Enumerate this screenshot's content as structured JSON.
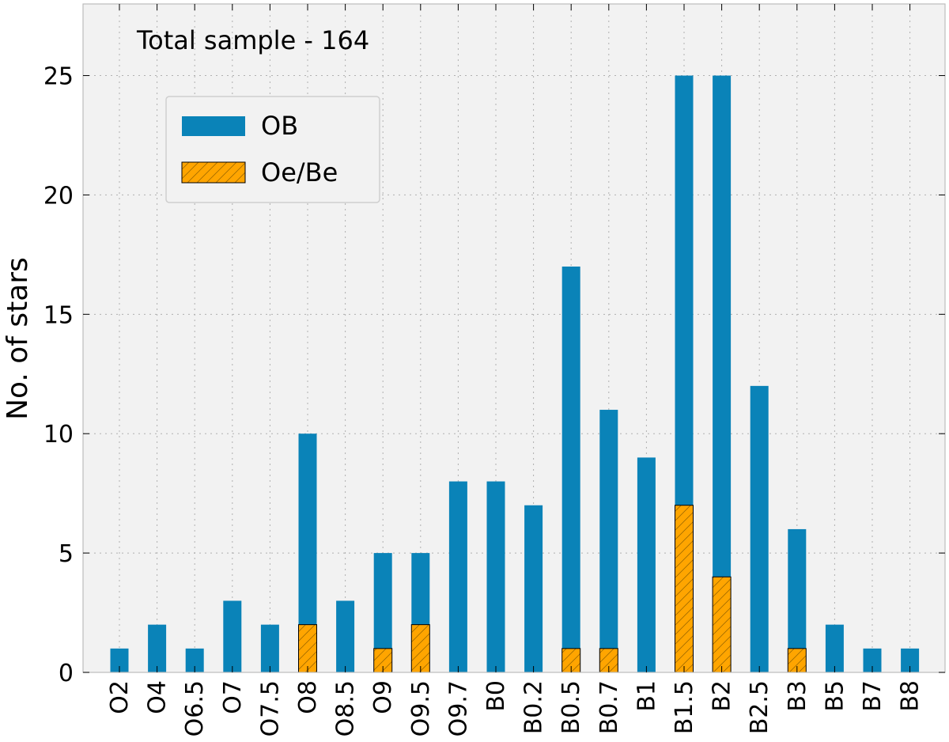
{
  "chart_data": {
    "type": "bar",
    "stacked": false,
    "overlaid": true,
    "categories": [
      "O2",
      "O4",
      "O6.5",
      "O7",
      "O7.5",
      "O8",
      "O8.5",
      "O9",
      "O9.5",
      "O9.7",
      "B0",
      "B0.2",
      "B0.5",
      "B0.7",
      "B1",
      "B1.5",
      "B2",
      "B2.5",
      "B3",
      "B5",
      "B7",
      "B8"
    ],
    "series": [
      {
        "name": "OB",
        "color": "#0a83b8",
        "hatch": false,
        "values": [
          1,
          2,
          1,
          3,
          2,
          10,
          3,
          5,
          5,
          8,
          8,
          7,
          17,
          11,
          9,
          25,
          25,
          12,
          6,
          2,
          1,
          1
        ]
      },
      {
        "name": "Oe/Be",
        "color": "#ffa500",
        "hatch": true,
        "values": [
          0,
          0,
          0,
          0,
          0,
          2,
          0,
          1,
          2,
          0,
          0,
          0,
          1,
          1,
          0,
          7,
          4,
          0,
          1,
          0,
          0,
          0
        ]
      }
    ],
    "title": "",
    "annotation": "Total sample - 164",
    "xlabel": "",
    "ylabel": "No. of stars",
    "ylim": [
      0,
      28
    ],
    "yticks": [
      0,
      5,
      10,
      15,
      20,
      25
    ],
    "grid": true,
    "legend_position": "upper-left",
    "plot_background": "#f2f2f2"
  }
}
